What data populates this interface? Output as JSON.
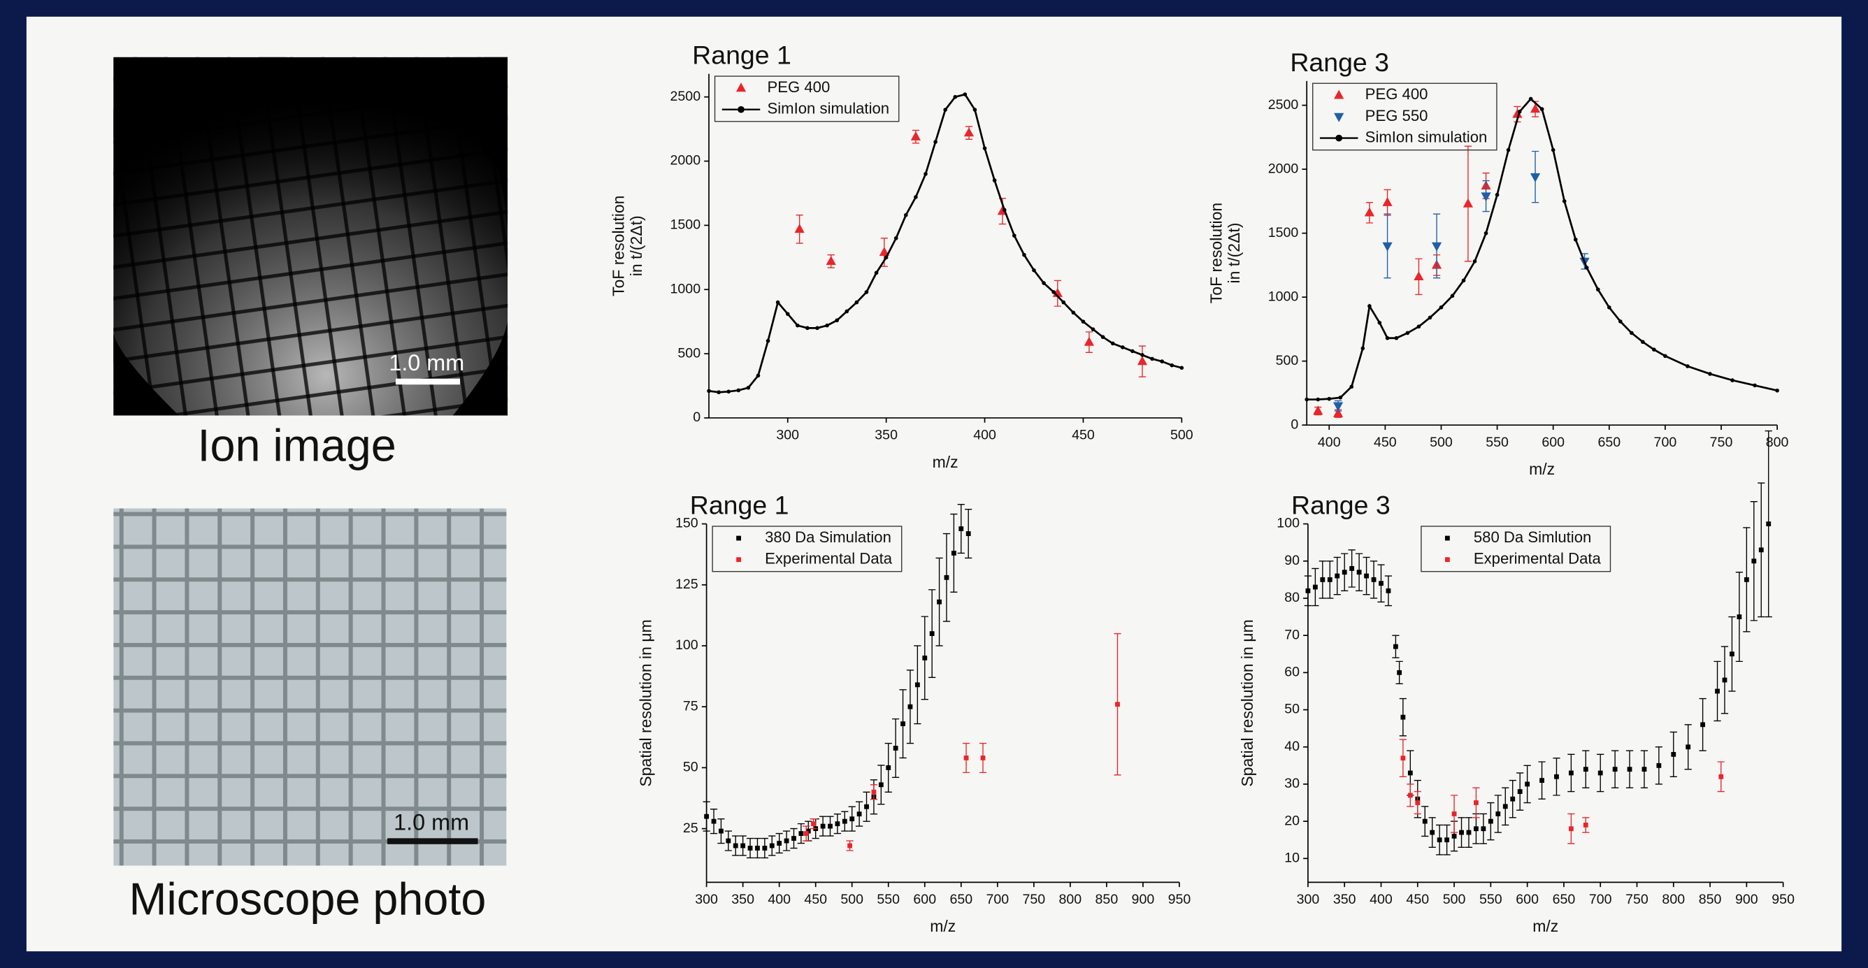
{
  "images": [
    {
      "caption": "Ion image",
      "scale_bar": "1.0 mm"
    },
    {
      "caption": "Microscope photo",
      "scale_bar": "1.0 mm"
    }
  ],
  "chart_data": [
    {
      "type": "scatter",
      "title": "Range 1",
      "xlabel": "m/z",
      "ylabel": [
        "ToF resolution",
        "in t/(2Δt)"
      ],
      "xlim": [
        260,
        500
      ],
      "ylim": [
        0,
        2680
      ],
      "xticks": [
        300,
        350,
        400,
        450,
        500
      ],
      "yticks": [
        0,
        500,
        1000,
        1500,
        2000,
        2500
      ],
      "legend": "upper left",
      "series": [
        {
          "name": "PEG 400",
          "color": "#e8262b",
          "marker": "triangle-up",
          "x": [
            306,
            322,
            349,
            365,
            392,
            409,
            437,
            453,
            480
          ],
          "values": [
            1470,
            1220,
            1290,
            2190,
            2220,
            1610,
            970,
            590,
            440
          ],
          "errors": [
            110,
            50,
            110,
            50,
            50,
            100,
            100,
            80,
            120
          ]
        },
        {
          "name": "SimIon simulation",
          "color": "#000000",
          "marker": "circle",
          "line": true,
          "x": [
            260,
            265,
            270,
            275,
            280,
            285,
            290,
            295,
            300,
            305,
            310,
            315,
            320,
            325,
            330,
            335,
            340,
            345,
            350,
            355,
            360,
            365,
            370,
            375,
            380,
            385,
            390,
            395,
            400,
            405,
            410,
            415,
            420,
            425,
            430,
            435,
            440,
            445,
            450,
            455,
            460,
            465,
            470,
            475,
            480,
            485,
            490,
            495,
            500
          ],
          "values": [
            210,
            200,
            205,
            215,
            235,
            330,
            600,
            900,
            810,
            720,
            700,
            700,
            720,
            760,
            830,
            900,
            980,
            1130,
            1250,
            1400,
            1580,
            1720,
            1900,
            2150,
            2400,
            2500,
            2520,
            2400,
            2100,
            1850,
            1620,
            1420,
            1270,
            1150,
            1050,
            980,
            900,
            820,
            750,
            690,
            630,
            580,
            550,
            520,
            490,
            460,
            440,
            410,
            390
          ]
        }
      ]
    },
    {
      "type": "scatter",
      "title": "Range 3",
      "xlabel": "m/z",
      "ylabel": [
        "ToF resolution",
        "in t/(2Δt)"
      ],
      "xlim": [
        380,
        800
      ],
      "ylim": [
        0,
        2690
      ],
      "xticks": [
        400,
        450,
        500,
        550,
        600,
        650,
        700,
        750,
        800
      ],
      "yticks": [
        0,
        500,
        1000,
        1500,
        2000,
        2500
      ],
      "legend": "upper left",
      "series": [
        {
          "name": "PEG 400",
          "color": "#e8262b",
          "marker": "triangle-up",
          "x": [
            390,
            408,
            436,
            452,
            480,
            496,
            524,
            540,
            568,
            584
          ],
          "values": [
            110,
            90,
            1660,
            1740,
            1160,
            1250,
            1730,
            1870,
            2430,
            2470
          ],
          "errors": [
            30,
            30,
            80,
            100,
            140,
            80,
            450,
            100,
            60,
            60
          ]
        },
        {
          "name": "PEG 550",
          "color": "#1f5fa8",
          "marker": "triangle-down",
          "x": [
            408,
            452,
            496,
            540,
            584,
            628
          ],
          "values": [
            150,
            1400,
            1400,
            1790,
            1940,
            1280
          ],
          "errors": [
            40,
            250,
            250,
            120,
            200,
            60
          ]
        },
        {
          "name": "SimIon simulation",
          "color": "#000000",
          "marker": "circle",
          "line": true,
          "x": [
            380,
            390,
            400,
            410,
            420,
            430,
            436,
            445,
            452,
            460,
            470,
            480,
            490,
            500,
            510,
            520,
            530,
            540,
            550,
            560,
            570,
            580,
            590,
            600,
            610,
            620,
            630,
            640,
            650,
            660,
            670,
            680,
            690,
            700,
            720,
            740,
            760,
            780,
            800
          ],
          "values": [
            200,
            200,
            205,
            215,
            300,
            600,
            930,
            800,
            680,
            680,
            720,
            770,
            840,
            920,
            1010,
            1130,
            1280,
            1500,
            1800,
            2150,
            2450,
            2550,
            2470,
            2150,
            1750,
            1450,
            1230,
            1060,
            920,
            810,
            720,
            650,
            590,
            540,
            460,
            400,
            350,
            310,
            270
          ]
        }
      ]
    },
    {
      "type": "scatter",
      "title": "Range 1",
      "xlabel": "m/z",
      "ylabel": [
        "Spatial resolution in μm"
      ],
      "xlim": [
        300,
        950
      ],
      "ylim": [
        3,
        150
      ],
      "xticks": [
        300,
        350,
        400,
        450,
        500,
        550,
        600,
        650,
        700,
        750,
        800,
        850,
        900,
        950
      ],
      "yticks": [
        25,
        50,
        75,
        100,
        125,
        150
      ],
      "legend": "upper left",
      "series": [
        {
          "name": "380 Da Simulation",
          "color": "#000000",
          "marker": "square",
          "x": [
            300,
            310,
            320,
            330,
            340,
            350,
            360,
            370,
            380,
            390,
            400,
            410,
            420,
            430,
            440,
            450,
            460,
            470,
            480,
            490,
            500,
            510,
            520,
            530,
            540,
            550,
            560,
            570,
            580,
            590,
            600,
            610,
            620,
            630,
            640,
            650,
            660
          ],
          "values": [
            30,
            28,
            24,
            20,
            18,
            18,
            17,
            17,
            17,
            18,
            19,
            20,
            21,
            23,
            24,
            25,
            26,
            26,
            27,
            28,
            29,
            31,
            34,
            38,
            43,
            50,
            58,
            68,
            75,
            84,
            95,
            105,
            118,
            128,
            138,
            148,
            146
          ],
          "errors": [
            6,
            5,
            5,
            4,
            4,
            4,
            4,
            4,
            4,
            4,
            4,
            4,
            4,
            4,
            4,
            4,
            4,
            4,
            4,
            4,
            5,
            5,
            6,
            7,
            8,
            10,
            12,
            14,
            15,
            16,
            17,
            18,
            18,
            18,
            16,
            10,
            10
          ]
        },
        {
          "name": "Experimental Data",
          "color": "#e8262b",
          "marker": "square",
          "x": [
            437,
            447,
            497,
            530,
            657,
            680,
            865
          ],
          "values": [
            23,
            27,
            18,
            40,
            54,
            54,
            76
          ],
          "errors": [
            3,
            2,
            2,
            3,
            6,
            6,
            29
          ]
        }
      ]
    },
    {
      "type": "scatter",
      "title": "Range 3",
      "xlabel": "m/z",
      "ylabel": [
        "Spatial resolution in μm"
      ],
      "xlim": [
        300,
        950
      ],
      "ylim": [
        3.6,
        100
      ],
      "xticks": [
        300,
        350,
        400,
        450,
        500,
        550,
        600,
        650,
        700,
        750,
        800,
        850,
        900,
        950
      ],
      "yticks": [
        10,
        20,
        30,
        40,
        50,
        60,
        70,
        80,
        90,
        100
      ],
      "legend": "upper center",
      "series": [
        {
          "name": "580 Da Simlution",
          "color": "#000000",
          "marker": "square",
          "x": [
            300,
            310,
            320,
            330,
            340,
            350,
            360,
            370,
            380,
            390,
            400,
            410,
            420,
            425,
            430,
            440,
            450,
            460,
            470,
            480,
            490,
            500,
            510,
            520,
            530,
            540,
            550,
            560,
            570,
            580,
            590,
            600,
            620,
            640,
            660,
            680,
            700,
            720,
            740,
            760,
            780,
            800,
            820,
            840,
            860,
            870,
            880,
            890,
            900,
            910,
            920,
            930
          ],
          "values": [
            82,
            83,
            85,
            85,
            86,
            87,
            88,
            87,
            86,
            85,
            84,
            82,
            67,
            60,
            48,
            33,
            26,
            20,
            17,
            15,
            15,
            16,
            17,
            17,
            18,
            18,
            20,
            22,
            24,
            26,
            28,
            30,
            31,
            32,
            33,
            34,
            33,
            34,
            34,
            34,
            35,
            38,
            40,
            46,
            55,
            58,
            65,
            75,
            85,
            90,
            93,
            100
          ],
          "errors": [
            4,
            5,
            5,
            5,
            5,
            5,
            5,
            5,
            5,
            5,
            5,
            4,
            3,
            3,
            5,
            6,
            5,
            4,
            4,
            4,
            4,
            4,
            4,
            4,
            4,
            4,
            5,
            5,
            5,
            5,
            5,
            5,
            5,
            5,
            5,
            5,
            5,
            5,
            5,
            5,
            5,
            6,
            6,
            7,
            8,
            9,
            10,
            12,
            14,
            16,
            18,
            25
          ]
        },
        {
          "name": "Experimental Data",
          "color": "#e8262b",
          "marker": "square",
          "x": [
            430,
            440,
            450,
            500,
            530,
            660,
            680,
            865
          ],
          "values": [
            37,
            27,
            25,
            22,
            25,
            18,
            19,
            32
          ],
          "errors": [
            5,
            3,
            3,
            5,
            4,
            4,
            2,
            4
          ]
        }
      ]
    }
  ]
}
